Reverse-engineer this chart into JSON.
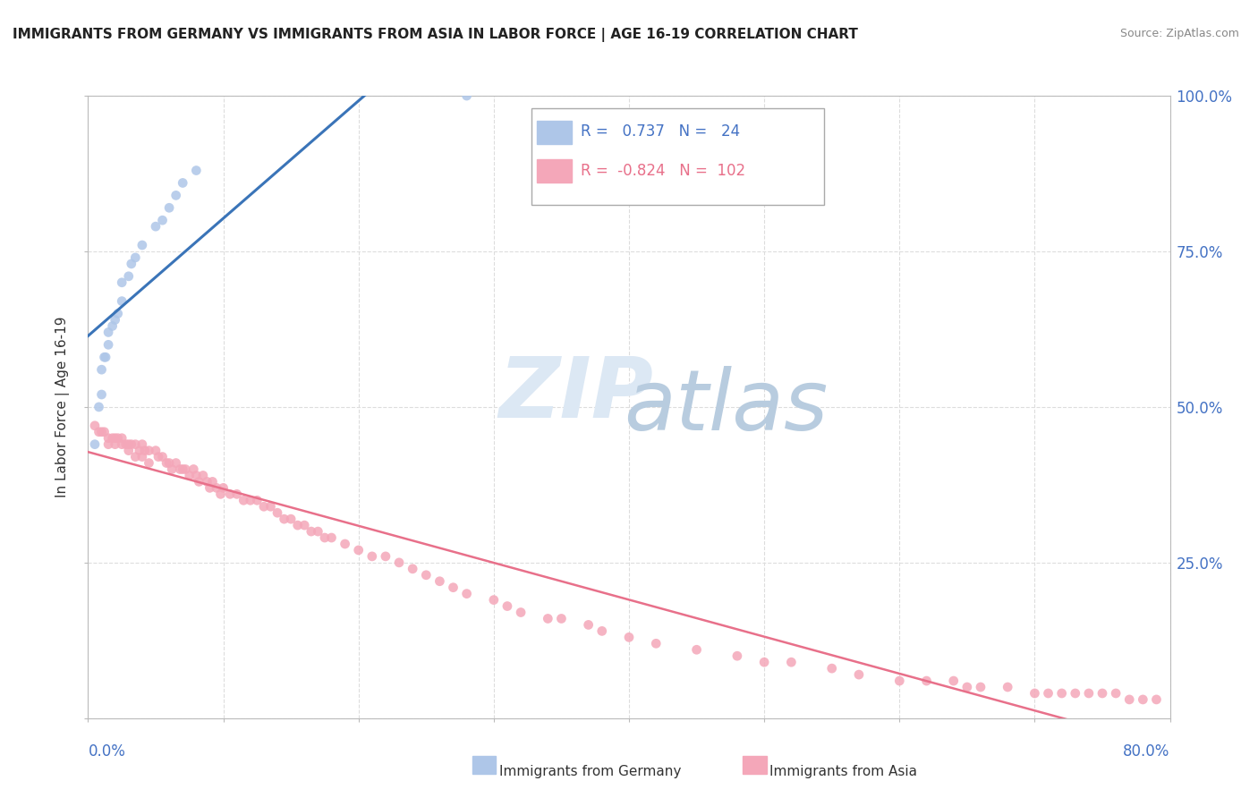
{
  "title": "IMMIGRANTS FROM GERMANY VS IMMIGRANTS FROM ASIA IN LABOR FORCE | AGE 16-19 CORRELATION CHART",
  "source": "Source: ZipAtlas.com",
  "ylabel": "In Labor Force | Age 16-19",
  "germany_color": "#aec6e8",
  "asia_color": "#f4a7b9",
  "germany_line_color": "#3a74b8",
  "asia_line_color": "#e8708a",
  "watermark_zip": "ZIP",
  "watermark_atlas": "atlas",
  "watermark_color_zip": "#d8e4f0",
  "watermark_color_atlas": "#b8cce0",
  "xlim": [
    0.0,
    0.8
  ],
  "ylim": [
    0.0,
    1.0
  ],
  "legend_R_germany": "0.737",
  "legend_N_germany": "24",
  "legend_R_asia": "-0.824",
  "legend_N_asia": "102",
  "germany_x": [
    0.005,
    0.008,
    0.01,
    0.01,
    0.012,
    0.013,
    0.015,
    0.015,
    0.018,
    0.02,
    0.022,
    0.025,
    0.025,
    0.03,
    0.032,
    0.035,
    0.04,
    0.05,
    0.055,
    0.06,
    0.065,
    0.07,
    0.08,
    0.28
  ],
  "germany_y": [
    0.44,
    0.5,
    0.52,
    0.56,
    0.58,
    0.58,
    0.6,
    0.62,
    0.63,
    0.64,
    0.65,
    0.67,
    0.7,
    0.71,
    0.73,
    0.74,
    0.76,
    0.79,
    0.8,
    0.82,
    0.84,
    0.86,
    0.88,
    1.0
  ],
  "asia_x": [
    0.005,
    0.008,
    0.01,
    0.012,
    0.015,
    0.015,
    0.018,
    0.02,
    0.02,
    0.022,
    0.025,
    0.025,
    0.028,
    0.03,
    0.03,
    0.032,
    0.035,
    0.035,
    0.038,
    0.04,
    0.04,
    0.042,
    0.045,
    0.045,
    0.05,
    0.052,
    0.055,
    0.058,
    0.06,
    0.062,
    0.065,
    0.068,
    0.07,
    0.072,
    0.075,
    0.078,
    0.08,
    0.082,
    0.085,
    0.088,
    0.09,
    0.092,
    0.095,
    0.098,
    0.1,
    0.105,
    0.11,
    0.115,
    0.12,
    0.125,
    0.13,
    0.135,
    0.14,
    0.145,
    0.15,
    0.155,
    0.16,
    0.165,
    0.17,
    0.175,
    0.18,
    0.19,
    0.2,
    0.21,
    0.22,
    0.23,
    0.24,
    0.25,
    0.26,
    0.27,
    0.28,
    0.3,
    0.31,
    0.32,
    0.34,
    0.35,
    0.37,
    0.38,
    0.4,
    0.42,
    0.45,
    0.48,
    0.5,
    0.52,
    0.55,
    0.57,
    0.6,
    0.62,
    0.64,
    0.65,
    0.66,
    0.68,
    0.7,
    0.71,
    0.72,
    0.73,
    0.74,
    0.75,
    0.76,
    0.77,
    0.78,
    0.79
  ],
  "asia_y": [
    0.47,
    0.46,
    0.46,
    0.46,
    0.45,
    0.44,
    0.45,
    0.45,
    0.44,
    0.45,
    0.45,
    0.44,
    0.44,
    0.44,
    0.43,
    0.44,
    0.44,
    0.42,
    0.43,
    0.44,
    0.42,
    0.43,
    0.43,
    0.41,
    0.43,
    0.42,
    0.42,
    0.41,
    0.41,
    0.4,
    0.41,
    0.4,
    0.4,
    0.4,
    0.39,
    0.4,
    0.39,
    0.38,
    0.39,
    0.38,
    0.37,
    0.38,
    0.37,
    0.36,
    0.37,
    0.36,
    0.36,
    0.35,
    0.35,
    0.35,
    0.34,
    0.34,
    0.33,
    0.32,
    0.32,
    0.31,
    0.31,
    0.3,
    0.3,
    0.29,
    0.29,
    0.28,
    0.27,
    0.26,
    0.26,
    0.25,
    0.24,
    0.23,
    0.22,
    0.21,
    0.2,
    0.19,
    0.18,
    0.17,
    0.16,
    0.16,
    0.15,
    0.14,
    0.13,
    0.12,
    0.11,
    0.1,
    0.09,
    0.09,
    0.08,
    0.07,
    0.06,
    0.06,
    0.06,
    0.05,
    0.05,
    0.05,
    0.04,
    0.04,
    0.04,
    0.04,
    0.04,
    0.04,
    0.04,
    0.03,
    0.03,
    0.03
  ]
}
